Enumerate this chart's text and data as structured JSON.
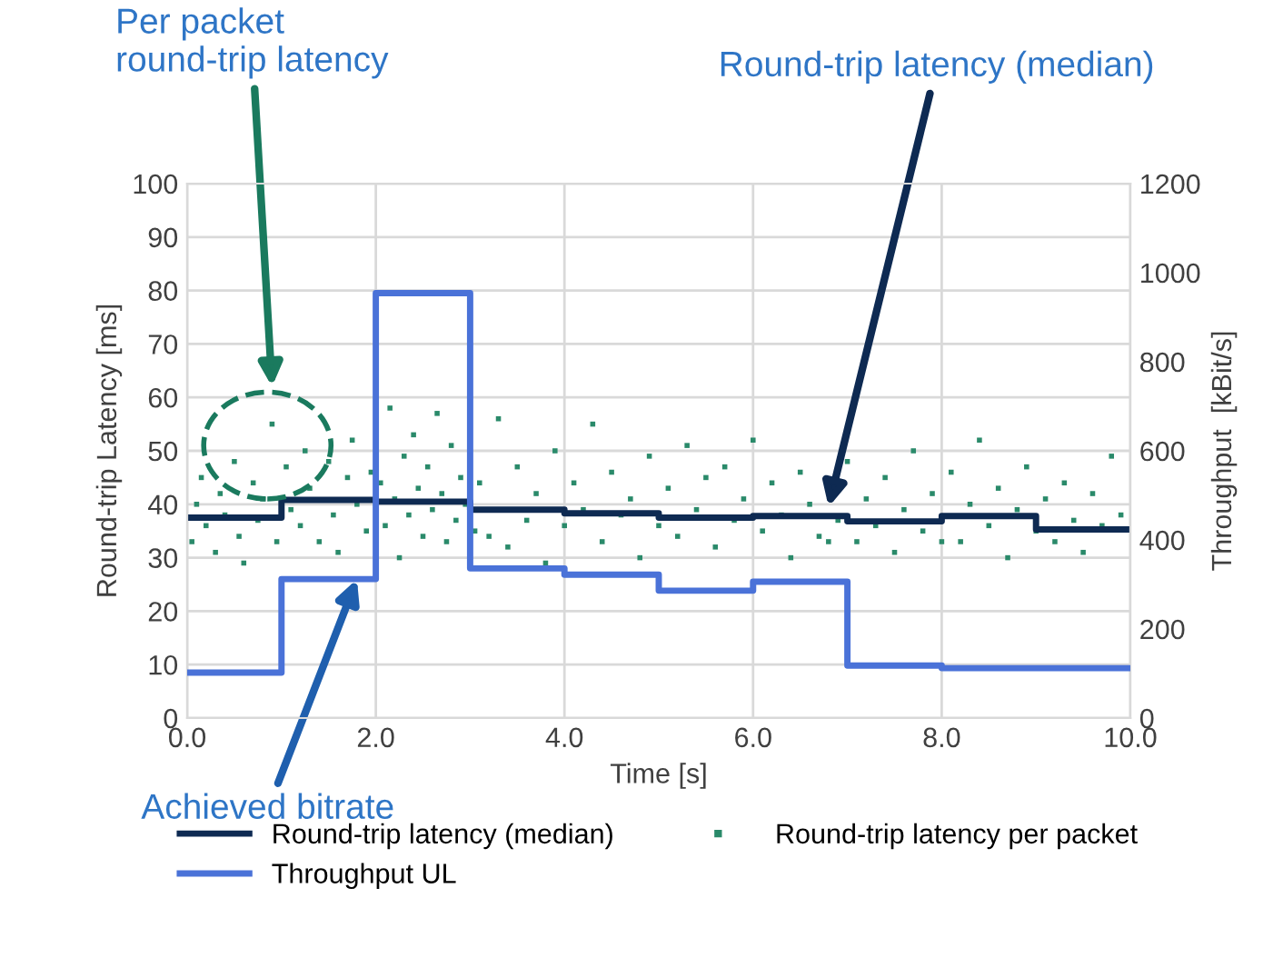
{
  "chart_data": {
    "type": "step",
    "xlabel": "Time [s]",
    "ylabel": "Round-trip Latency [ms]",
    "y2label": "Throughput  [kBit/s]",
    "xlim": [
      0,
      10
    ],
    "xticks": [
      {
        "value": 0,
        "label": "0.0"
      },
      {
        "value": 2,
        "label": "2.0"
      },
      {
        "value": 4,
        "label": "4.0"
      },
      {
        "value": 6,
        "label": "6.0"
      },
      {
        "value": 8,
        "label": "8.0"
      },
      {
        "value": 10,
        "label": "10.0"
      }
    ],
    "ylim": [
      0,
      100
    ],
    "yticks": [
      0,
      10,
      20,
      30,
      40,
      50,
      60,
      70,
      80,
      90,
      100
    ],
    "y2lim": [
      0,
      1200
    ],
    "y2ticks": [
      0,
      200,
      400,
      600,
      800,
      1000,
      1200
    ],
    "grid": true,
    "legend": "bottom",
    "series": [
      {
        "name": "Round-trip latency (median)",
        "color": "#0e2a52",
        "x": [
          0,
          1,
          2,
          3,
          4,
          5,
          6,
          7,
          8,
          9,
          10
        ],
        "values": [
          37.5,
          40.8,
          40.5,
          39,
          38.3,
          37.5,
          37.8,
          36.8,
          37.8,
          35.3,
          35.3
        ]
      },
      {
        "name": "Round-trip latency per packet",
        "type": "scatter",
        "color": "#2a8a6a",
        "x": [
          0.05,
          0.1,
          0.15,
          0.2,
          0.3,
          0.35,
          0.4,
          0.5,
          0.55,
          0.6,
          0.7,
          0.75,
          0.8,
          0.9,
          0.95,
          1.05,
          1.1,
          1.2,
          1.25,
          1.3,
          1.4,
          1.5,
          1.55,
          1.6,
          1.7,
          1.75,
          1.8,
          1.9,
          1.95,
          2.05,
          2.1,
          2.15,
          2.2,
          2.25,
          2.3,
          2.35,
          2.4,
          2.45,
          2.5,
          2.55,
          2.6,
          2.65,
          2.7,
          2.75,
          2.8,
          2.85,
          2.9,
          2.95,
          3.05,
          3.1,
          3.2,
          3.3,
          3.4,
          3.5,
          3.6,
          3.7,
          3.8,
          3.9,
          4.0,
          4.1,
          4.2,
          4.3,
          4.4,
          4.5,
          4.6,
          4.7,
          4.8,
          4.9,
          5.0,
          5.1,
          5.2,
          5.3,
          5.4,
          5.5,
          5.6,
          5.7,
          5.8,
          5.9,
          6.0,
          6.1,
          6.2,
          6.3,
          6.4,
          6.5,
          6.6,
          6.7,
          6.8,
          6.9,
          7.0,
          7.1,
          7.2,
          7.3,
          7.4,
          7.5,
          7.6,
          7.7,
          7.8,
          7.9,
          8.0,
          8.1,
          8.2,
          8.3,
          8.4,
          8.5,
          8.6,
          8.7,
          8.8,
          8.9,
          9.0,
          9.1,
          9.2,
          9.3,
          9.4,
          9.5,
          9.6,
          9.7,
          9.8,
          9.9
        ],
        "values": [
          33,
          40,
          45,
          36,
          31,
          42,
          38,
          48,
          34,
          29,
          44,
          37,
          41,
          55,
          33,
          47,
          39,
          36,
          50,
          43,
          33,
          48,
          38,
          31,
          45,
          52,
          40,
          35,
          46,
          44,
          36,
          58,
          41,
          30,
          49,
          38,
          53,
          43,
          34,
          47,
          39,
          57,
          42,
          33,
          51,
          37,
          45,
          40,
          35,
          44,
          34,
          56,
          32,
          47,
          37,
          42,
          29,
          50,
          36,
          44,
          39,
          55,
          33,
          46,
          38,
          41,
          30,
          49,
          36,
          43,
          34,
          51,
          39,
          45,
          32,
          47,
          37,
          41,
          52,
          35,
          44,
          38,
          30,
          46,
          40,
          34,
          33,
          37,
          48,
          33,
          41,
          36,
          45,
          31,
          39,
          50,
          35,
          42,
          33,
          46,
          33,
          40,
          52,
          36,
          43,
          30,
          39,
          47,
          35,
          41,
          33,
          44,
          37,
          31,
          42,
          36,
          49,
          38
        ]
      },
      {
        "name": "Throughput UL",
        "axis": "y2",
        "color": "#4a72d8",
        "x": [
          0,
          1,
          2,
          3,
          4,
          5,
          6,
          7,
          8,
          9,
          10
        ],
        "values": [
          102,
          312,
          954,
          336,
          322,
          286,
          306,
          118,
          112,
          112,
          112
        ]
      }
    ],
    "annotations": [
      "Per packet\nround-trip latency",
      "Round-trip latency (median)",
      {
        "text": "Achieved bitrate",
        "x": 1.8,
        "y": 26
      }
    ]
  }
}
